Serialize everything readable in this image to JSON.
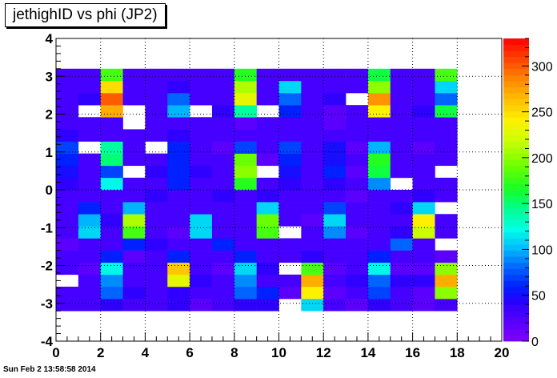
{
  "chart_data": {
    "type": "heatmap",
    "title": "jethighID vs phi (JP2)",
    "xlim": [
      0,
      20
    ],
    "ylim": [
      -4,
      4
    ],
    "zlim": [
      0,
      330
    ],
    "x_ticks": [
      "0",
      "2",
      "4",
      "6",
      "8",
      "10",
      "12",
      "14",
      "16",
      "18",
      "20"
    ],
    "y_ticks": [
      "-4",
      "-3",
      "-2",
      "-1",
      "0",
      "1",
      "2",
      "3",
      "4"
    ],
    "z_ticks": [
      "0",
      "50",
      "100",
      "150",
      "200",
      "250",
      "300"
    ],
    "grid": true,
    "x_bin_width": 1,
    "y_bin_edges": [
      -3.2,
      -2.88,
      -2.56,
      -2.24,
      -1.92,
      -1.6,
      -1.28,
      -0.96,
      -0.64,
      -0.32,
      0,
      0.32,
      0.64,
      0.96,
      1.28,
      1.6,
      1.92,
      2.24,
      2.56,
      2.88,
      3.2
    ],
    "counts": [
      [
        30,
        30,
        40,
        30,
        30,
        40,
        20,
        30,
        40,
        40,
        0,
        110,
        30,
        20,
        40,
        30,
        20,
        30
      ],
      [
        30,
        30,
        80,
        40,
        30,
        40,
        30,
        30,
        80,
        60,
        20,
        240,
        20,
        30,
        70,
        30,
        20,
        200
      ],
      [
        0,
        30,
        90,
        30,
        30,
        230,
        40,
        30,
        90,
        30,
        30,
        270,
        30,
        40,
        80,
        40,
        40,
        270
      ],
      [
        30,
        20,
        120,
        30,
        30,
        260,
        30,
        20,
        110,
        40,
        0,
        180,
        20,
        30,
        120,
        20,
        20,
        200
      ],
      [
        30,
        30,
        60,
        20,
        30,
        60,
        30,
        30,
        60,
        30,
        30,
        40,
        30,
        30,
        60,
        30,
        30,
        20
      ],
      [
        20,
        30,
        30,
        60,
        40,
        30,
        30,
        60,
        30,
        30,
        30,
        30,
        30,
        30,
        30,
        80,
        30,
        0
      ],
      [
        30,
        110,
        30,
        180,
        30,
        20,
        110,
        30,
        30,
        180,
        0,
        30,
        90,
        20,
        30,
        40,
        220,
        30
      ],
      [
        30,
        100,
        40,
        210,
        30,
        30,
        110,
        30,
        30,
        190,
        30,
        20,
        110,
        30,
        30,
        30,
        240,
        30
      ],
      [
        30,
        60,
        30,
        100,
        30,
        30,
        30,
        30,
        30,
        110,
        30,
        30,
        70,
        30,
        30,
        40,
        110,
        0
      ],
      [
        30,
        30,
        30,
        30,
        40,
        30,
        30,
        40,
        30,
        40,
        30,
        30,
        30,
        20,
        30,
        30,
        40,
        30
      ],
      [
        40,
        30,
        120,
        30,
        30,
        60,
        30,
        30,
        170,
        30,
        40,
        30,
        40,
        30,
        90,
        0,
        30,
        30
      ],
      [
        50,
        30,
        70,
        0,
        40,
        60,
        40,
        30,
        200,
        0,
        50,
        30,
        60,
        20,
        160,
        30,
        30,
        0
      ],
      [
        60,
        30,
        150,
        30,
        30,
        60,
        30,
        30,
        190,
        20,
        60,
        30,
        50,
        30,
        170,
        30,
        30,
        30
      ],
      [
        70,
        0,
        140,
        30,
        0,
        60,
        30,
        20,
        70,
        30,
        70,
        30,
        50,
        20,
        100,
        30,
        20,
        30
      ],
      [
        40,
        30,
        30,
        30,
        30,
        40,
        30,
        30,
        30,
        30,
        30,
        30,
        30,
        30,
        30,
        30,
        30,
        30
      ],
      [
        30,
        30,
        30,
        0,
        30,
        30,
        30,
        30,
        20,
        30,
        30,
        30,
        20,
        30,
        30,
        30,
        30,
        30
      ],
      [
        30,
        0,
        270,
        0,
        30,
        100,
        0,
        40,
        140,
        0,
        60,
        30,
        20,
        30,
        240,
        30,
        40,
        160
      ],
      [
        30,
        40,
        300,
        30,
        30,
        80,
        30,
        30,
        230,
        30,
        80,
        30,
        40,
        0,
        280,
        30,
        30,
        80
      ],
      [
        30,
        30,
        250,
        30,
        30,
        40,
        30,
        30,
        210,
        30,
        110,
        30,
        30,
        30,
        200,
        30,
        30,
        110
      ],
      [
        30,
        30,
        180,
        30,
        30,
        30,
        30,
        30,
        170,
        30,
        30,
        30,
        30,
        30,
        160,
        30,
        30,
        180
      ]
    ]
  },
  "footer": "Sun Feb  2 13:58:58 2014"
}
